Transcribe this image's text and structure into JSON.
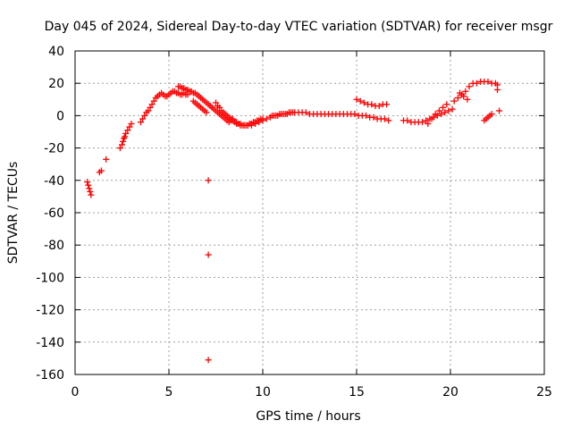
{
  "chart_data": {
    "type": "scatter",
    "title": "Day 045 of 2024, Sidereal Day-to-day VTEC variation (SDTVAR) for receiver msgr",
    "xlabel": "GPS time / hours",
    "ylabel": "SDTVAR / TECUs",
    "xlim": [
      0,
      25
    ],
    "ylim": [
      -160,
      40
    ],
    "xticks": [
      0,
      5,
      10,
      15,
      20,
      25
    ],
    "yticks": [
      -160,
      -140,
      -120,
      -100,
      -80,
      -60,
      -40,
      -20,
      0,
      20,
      40
    ],
    "grid": true,
    "marker": "+",
    "color": "#ff0000",
    "series": [
      {
        "name": "SDTVAR",
        "x": [
          0.65,
          0.7,
          0.75,
          0.8,
          0.85,
          1.3,
          1.4,
          1.65,
          2.4,
          2.5,
          2.55,
          2.6,
          2.65,
          2.7,
          2.8,
          2.9,
          3.0,
          3.5,
          3.6,
          3.7,
          3.8,
          3.9,
          4.0,
          4.1,
          4.2,
          4.3,
          4.4,
          4.5,
          4.6,
          4.7,
          4.8,
          4.9,
          5.0,
          5.1,
          5.2,
          5.3,
          5.4,
          5.5,
          5.6,
          5.7,
          5.8,
          5.9,
          6.0,
          5.5,
          5.6,
          5.7,
          5.8,
          5.9,
          6.0,
          6.1,
          6.2,
          6.3,
          6.4,
          6.5,
          6.6,
          6.7,
          6.8,
          6.9,
          7.0,
          7.1,
          6.3,
          6.4,
          6.5,
          6.6,
          6.7,
          6.8,
          6.9,
          7.0,
          7.1,
          7.1,
          7.1,
          7.2,
          7.3,
          7.4,
          7.5,
          7.6,
          7.7,
          7.8,
          7.9,
          8.0,
          8.1,
          8.2,
          8.3,
          8.4,
          7.5,
          7.6,
          7.7,
          7.8,
          7.9,
          8.0,
          8.1,
          8.2,
          8.3,
          8.4,
          8.5,
          8.6,
          8.7,
          8.8,
          8.9,
          9.0,
          9.1,
          9.2,
          9.3,
          9.4,
          9.5,
          9.6,
          9.7,
          9.8,
          9.9,
          10.0,
          8.2,
          8.4,
          8.6,
          8.8,
          9.0,
          9.2,
          9.4,
          9.6,
          9.8,
          10.0,
          10.2,
          10.4,
          10.6,
          10.8,
          11.0,
          11.2,
          11.4,
          11.6,
          10.5,
          10.7,
          10.9,
          11.1,
          11.3,
          11.5,
          11.7,
          11.9,
          12.1,
          12.3,
          12.5,
          12.7,
          12.9,
          13.1,
          13.3,
          13.5,
          13.7,
          13.9,
          14.1,
          14.3,
          14.5,
          14.7,
          14.9,
          15.1,
          15.3,
          15.5,
          15.7,
          15.9,
          16.1,
          16.3,
          16.5,
          16.7,
          15.0,
          15.2,
          15.4,
          15.6,
          15.8,
          16.0,
          16.2,
          16.4,
          16.6,
          17.5,
          17.7,
          17.9,
          18.1,
          18.3,
          18.5,
          18.7,
          18.9,
          19.1,
          19.3,
          19.5,
          19.7,
          19.9,
          20.1,
          18.8,
          19.0,
          19.2,
          19.4,
          19.6,
          19.8,
          20.2,
          20.4,
          20.6,
          20.8,
          20.5,
          20.7,
          20.9,
          21.0,
          21.2,
          21.4,
          21.6,
          21.8,
          22.0,
          22.2,
          22.4,
          21.8,
          21.9,
          22.0,
          22.1,
          22.2,
          22.5,
          22.5,
          22.6
        ],
        "y": [
          -41,
          -43,
          -45,
          -47,
          -49,
          -35,
          -34,
          -27,
          -20,
          -18,
          -16,
          -14,
          -13,
          -11,
          -9,
          -7,
          -5,
          -4,
          -2,
          0,
          2,
          3,
          5,
          7,
          9,
          11,
          12,
          13,
          14,
          13,
          12,
          12,
          13,
          14,
          15,
          15,
          14,
          14,
          13,
          13,
          14,
          13,
          13,
          18,
          18,
          17,
          17,
          16,
          16,
          15,
          15,
          14,
          14,
          13,
          12,
          11,
          10,
          9,
          8,
          7,
          9,
          8,
          7,
          6,
          5,
          4,
          3,
          2,
          -40,
          -86,
          -151,
          6,
          5,
          4,
          3,
          2,
          1,
          0,
          -1,
          -2,
          -3,
          -4,
          -3,
          -2,
          8,
          6,
          5,
          3,
          2,
          1,
          0,
          -1,
          -2,
          -3,
          -4,
          -5,
          -5,
          -6,
          -6,
          -6,
          -6,
          -6,
          -5,
          -5,
          -4,
          -4,
          -3,
          -3,
          -2,
          -2,
          -2,
          -3,
          -4,
          -5,
          -6,
          -6,
          -6,
          -5,
          -4,
          -3,
          -2,
          -1,
          0,
          0,
          1,
          1,
          2,
          2,
          0,
          0,
          1,
          1,
          1,
          2,
          2,
          2,
          2,
          2,
          1,
          1,
          1,
          1,
          1,
          1,
          1,
          1,
          1,
          1,
          1,
          1,
          1,
          0,
          0,
          0,
          -1,
          -1,
          -2,
          -2,
          -2,
          -3,
          10,
          9,
          8,
          7,
          7,
          6,
          6,
          7,
          7,
          -3,
          -3,
          -4,
          -4,
          -4,
          -4,
          -3,
          -2,
          -1,
          0,
          1,
          2,
          3,
          4,
          -5,
          -2,
          1,
          3,
          5,
          7,
          9,
          11,
          13,
          15,
          14,
          12,
          10,
          18,
          20,
          20,
          21,
          21,
          21,
          20,
          20,
          -3,
          -2,
          -1,
          0,
          1,
          16,
          19,
          3
        ]
      }
    ]
  }
}
